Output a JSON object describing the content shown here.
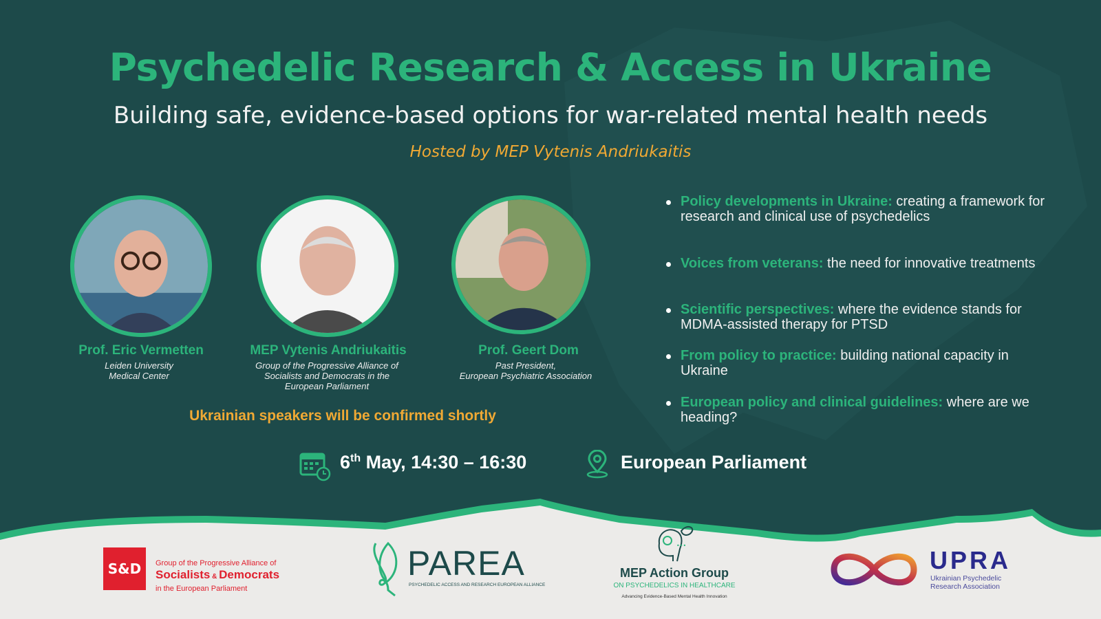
{
  "header": {
    "title": "Psychedelic Research & Access in Ukraine",
    "subtitle": "Building safe, evidence-based options for war-related mental health needs",
    "hosted_by": "Hosted by MEP Vytenis Andriukaitis"
  },
  "speakers": [
    {
      "name": "Prof. Eric Vermetten",
      "affiliation_lines": [
        "Leiden University",
        "Medical Center"
      ]
    },
    {
      "name": "MEP Vytenis Andriukaitis",
      "affiliation_lines": [
        "Group of the Progressive Alliance of",
        "Socialists and Democrats in the",
        "European Parliament"
      ]
    },
    {
      "name": "Prof. Geert Dom",
      "affiliation_lines": [
        "Past President,",
        "European Psychiatric Association"
      ]
    }
  ],
  "note": "Ukrainian speakers will be confirmed shortly",
  "topics": [
    {
      "heading": "Policy developments in Ukraine:",
      "text": " creating a framework for research and clinical use of psychedelics"
    },
    {
      "heading": "Voices from veterans:",
      "text": " the need for innovative treatments"
    },
    {
      "heading": "Scientific perspectives:",
      "text": " where the evidence stands for MDMA-assisted therapy for PTSD"
    },
    {
      "heading": "From policy to practice:",
      "text": " building national capacity in Ukraine"
    },
    {
      "heading": "European policy and clinical guidelines:",
      "text": " where are we heading?"
    }
  ],
  "event": {
    "date_day": "6",
    "date_suffix": "th",
    "date_rest": " May, 14:30 – 16:30",
    "location": "European Parliament",
    "icons": [
      "calendar-icon",
      "location-pin-icon"
    ]
  },
  "logos": {
    "sd": {
      "badge": "S&D",
      "line1": "Group of the Progressive Alliance of",
      "line2a": "Socialists",
      "line2b": " & ",
      "line2c": "Democrats",
      "line3": "in the European Parliament"
    },
    "parea": {
      "name": "PAREA",
      "tagline": "PSYCHEDELIC ACCESS AND RESEARCH EUROPEAN ALLIANCE"
    },
    "mep_group": {
      "name": "MEP Action Group",
      "sub": "ON PSYCHEDELICS IN HEALTHCARE",
      "tagline": "Advancing Evidence-Based Mental Health Innovation"
    },
    "upra": {
      "name": "UPRA",
      "line1": "Ukrainian Psychedelic",
      "line2": "Research Association"
    }
  },
  "colors": {
    "background": "#1d4a4a",
    "accent_green": "#2cb47b",
    "accent_orange": "#f0a934",
    "footer": "#ecebe9",
    "sd_red": "#e0202e",
    "upra_blue": "#2a2a8c"
  }
}
